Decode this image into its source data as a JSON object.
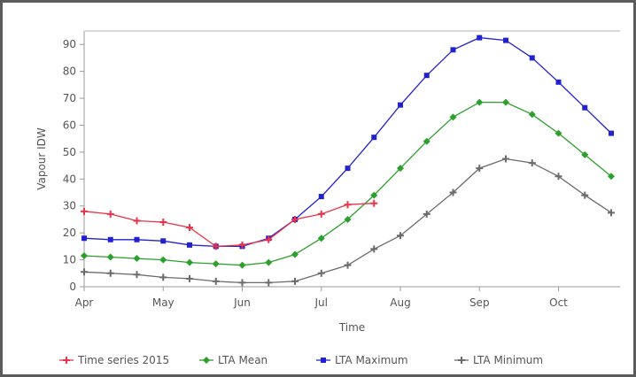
{
  "chart_data": {
    "type": "line",
    "xlabel": "Time",
    "ylabel": "Vapour IDW",
    "ylim": [
      0,
      95
    ],
    "yticks": [
      0,
      10,
      20,
      30,
      40,
      50,
      60,
      70,
      80,
      90
    ],
    "xticks": [
      "Apr",
      "May",
      "Jun",
      "Jul",
      "Aug",
      "Sep",
      "Oct"
    ],
    "grid": false,
    "legend_position": "bottom",
    "series": [
      {
        "name": "Time series 2015",
        "color": "#e8334a",
        "marker": "plus",
        "values": [
          {
            "x": "Apr 01",
            "y": 28
          },
          {
            "x": "Apr 11",
            "y": 27
          },
          {
            "x": "Apr 21",
            "y": 24.5
          },
          {
            "x": "May 01",
            "y": 24
          },
          {
            "x": "May 11",
            "y": 22
          },
          {
            "x": "May 21",
            "y": 15
          },
          {
            "x": "Jun 01",
            "y": 15.5
          },
          {
            "x": "Jun 11",
            "y": 17.5
          },
          {
            "x": "Jun 21",
            "y": 25
          },
          {
            "x": "Jul 01",
            "y": 27
          },
          {
            "x": "Jul 11",
            "y": 30.5
          },
          {
            "x": "Jul 21",
            "y": 31
          }
        ]
      },
      {
        "name": "LTA Mean",
        "color": "#2ca02c",
        "marker": "diamond",
        "values": [
          {
            "x": "Apr 01",
            "y": 11.5
          },
          {
            "x": "Apr 11",
            "y": 11
          },
          {
            "x": "Apr 21",
            "y": 10.5
          },
          {
            "x": "May 01",
            "y": 10
          },
          {
            "x": "May 11",
            "y": 9
          },
          {
            "x": "May 21",
            "y": 8.5
          },
          {
            "x": "Jun 01",
            "y": 8
          },
          {
            "x": "Jun 11",
            "y": 9
          },
          {
            "x": "Jun 21",
            "y": 12
          },
          {
            "x": "Jul 01",
            "y": 18
          },
          {
            "x": "Jul 11",
            "y": 25
          },
          {
            "x": "Jul 21",
            "y": 34
          },
          {
            "x": "Aug 01",
            "y": 44
          },
          {
            "x": "Aug 11",
            "y": 54
          },
          {
            "x": "Aug 21",
            "y": 63
          },
          {
            "x": "Sep 01",
            "y": 68.5
          },
          {
            "x": "Sep 11",
            "y": 68.5
          },
          {
            "x": "Sep 21",
            "y": 64
          },
          {
            "x": "Oct 01",
            "y": 57
          },
          {
            "x": "Oct 11",
            "y": 49
          },
          {
            "x": "Oct 21",
            "y": 41
          }
        ]
      },
      {
        "name": "LTA Maximum",
        "color": "#2222cc",
        "marker": "square",
        "values": [
          {
            "x": "Apr 01",
            "y": 18
          },
          {
            "x": "Apr 11",
            "y": 17.5
          },
          {
            "x": "Apr 21",
            "y": 17.5
          },
          {
            "x": "May 01",
            "y": 17
          },
          {
            "x": "May 11",
            "y": 15.5
          },
          {
            "x": "May 21",
            "y": 15
          },
          {
            "x": "Jun 01",
            "y": 15
          },
          {
            "x": "Jun 11",
            "y": 18
          },
          {
            "x": "Jun 21",
            "y": 25
          },
          {
            "x": "Jul 01",
            "y": 33.5
          },
          {
            "x": "Jul 11",
            "y": 44
          },
          {
            "x": "Jul 21",
            "y": 55.5
          },
          {
            "x": "Aug 01",
            "y": 67.5
          },
          {
            "x": "Aug 11",
            "y": 78.5
          },
          {
            "x": "Aug 21",
            "y": 88
          },
          {
            "x": "Sep 01",
            "y": 92.5
          },
          {
            "x": "Sep 11",
            "y": 91.5
          },
          {
            "x": "Sep 21",
            "y": 85
          },
          {
            "x": "Oct 01",
            "y": 76
          },
          {
            "x": "Oct 11",
            "y": 66.5
          },
          {
            "x": "Oct 21",
            "y": 57
          }
        ]
      },
      {
        "name": "LTA Minimum",
        "color": "#6b6b6b",
        "marker": "plus",
        "values": [
          {
            "x": "Apr 01",
            "y": 5.5
          },
          {
            "x": "Apr 11",
            "y": 5
          },
          {
            "x": "Apr 21",
            "y": 4.5
          },
          {
            "x": "May 01",
            "y": 3.5
          },
          {
            "x": "May 11",
            "y": 3
          },
          {
            "x": "May 21",
            "y": 2
          },
          {
            "x": "Jun 01",
            "y": 1.5
          },
          {
            "x": "Jun 11",
            "y": 1.5
          },
          {
            "x": "Jun 21",
            "y": 2
          },
          {
            "x": "Jul 01",
            "y": 5
          },
          {
            "x": "Jul 11",
            "y": 8
          },
          {
            "x": "Jul 21",
            "y": 14
          },
          {
            "x": "Aug 01",
            "y": 19
          },
          {
            "x": "Aug 11",
            "y": 27
          },
          {
            "x": "Aug 21",
            "y": 35
          },
          {
            "x": "Sep 01",
            "y": 44
          },
          {
            "x": "Sep 11",
            "y": 47.5
          },
          {
            "x": "Sep 21",
            "y": 46
          },
          {
            "x": "Oct 01",
            "y": 41
          },
          {
            "x": "Oct 11",
            "y": 34
          },
          {
            "x": "Oct 21",
            "y": 27.5
          }
        ]
      }
    ]
  }
}
